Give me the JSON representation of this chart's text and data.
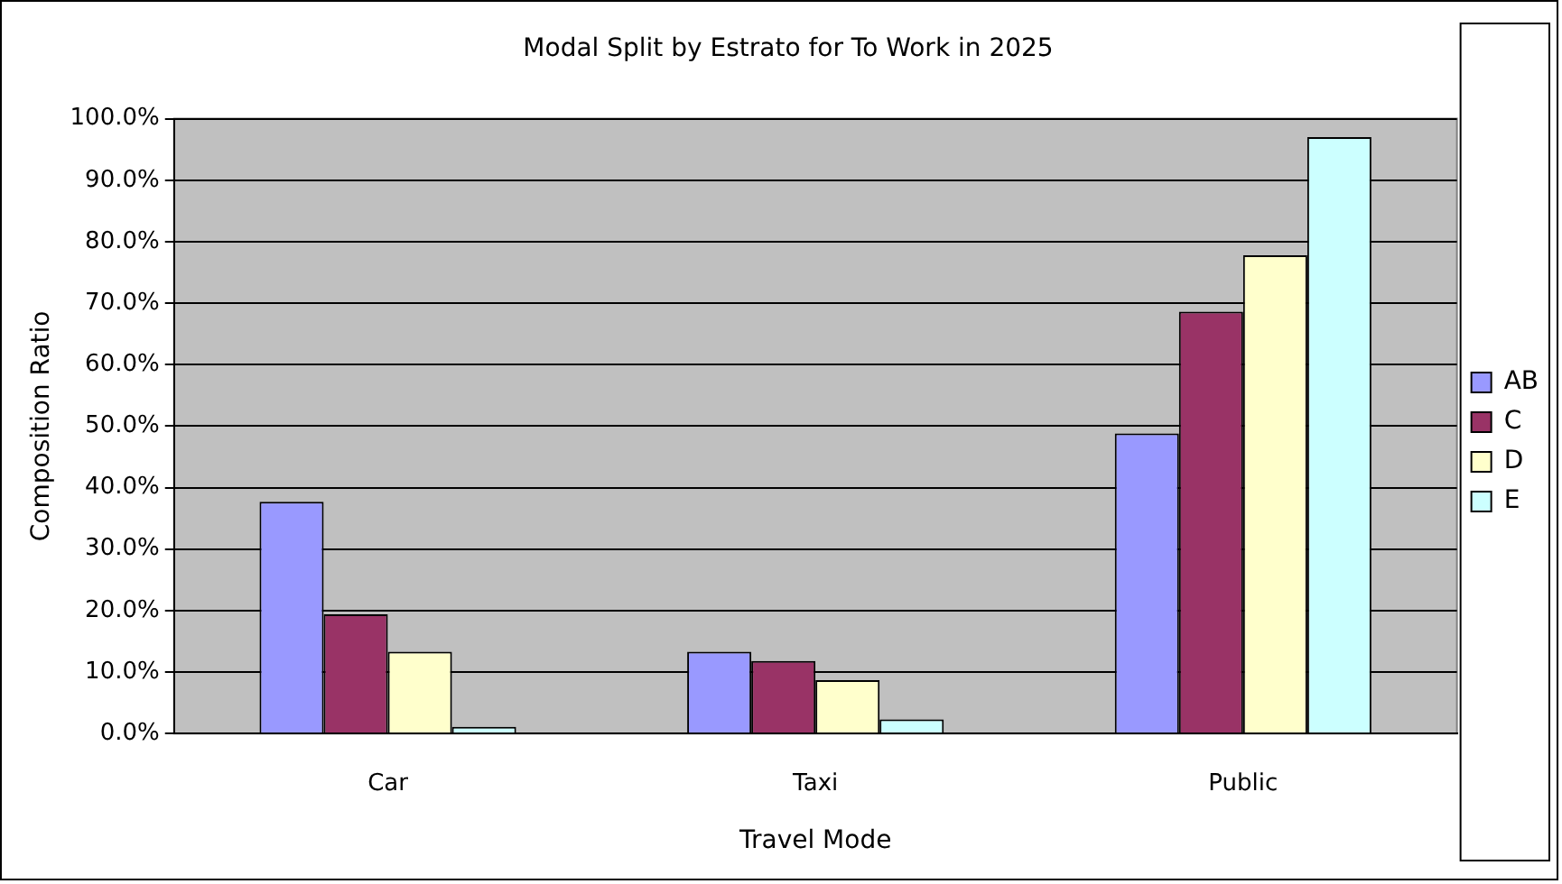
{
  "chart_data": {
    "type": "bar",
    "title": "Modal Split by Estrato for To Work in 2025",
    "xlabel": "Travel Mode",
    "ylabel": "Composition Ratio",
    "categories": [
      "Car",
      "Taxi",
      "Public"
    ],
    "series": [
      {
        "name": "AB",
        "color": "#9999ff",
        "values": [
          37.7,
          13.3,
          48.8
        ]
      },
      {
        "name": "C",
        "color": "#993366",
        "values": [
          19.4,
          11.8,
          68.6
        ]
      },
      {
        "name": "D",
        "color": "#ffffcc",
        "values": [
          13.3,
          8.7,
          77.8
        ]
      },
      {
        "name": "E",
        "color": "#ccffff",
        "values": [
          1.1,
          2.3,
          97.0
        ]
      }
    ],
    "ylim": [
      0,
      100
    ],
    "yticks": [
      {
        "value": 0,
        "label": "0.0%"
      },
      {
        "value": 10,
        "label": "10.0%"
      },
      {
        "value": 20,
        "label": "20.0%"
      },
      {
        "value": 30,
        "label": "30.0%"
      },
      {
        "value": 40,
        "label": "40.0%"
      },
      {
        "value": 50,
        "label": "50.0%"
      },
      {
        "value": 60,
        "label": "60.0%"
      },
      {
        "value": 70,
        "label": "70.0%"
      },
      {
        "value": 80,
        "label": "80.0%"
      },
      {
        "value": 90,
        "label": "90.0%"
      },
      {
        "value": 100,
        "label": "100.0%"
      }
    ],
    "grid": "y",
    "legend": "right"
  }
}
